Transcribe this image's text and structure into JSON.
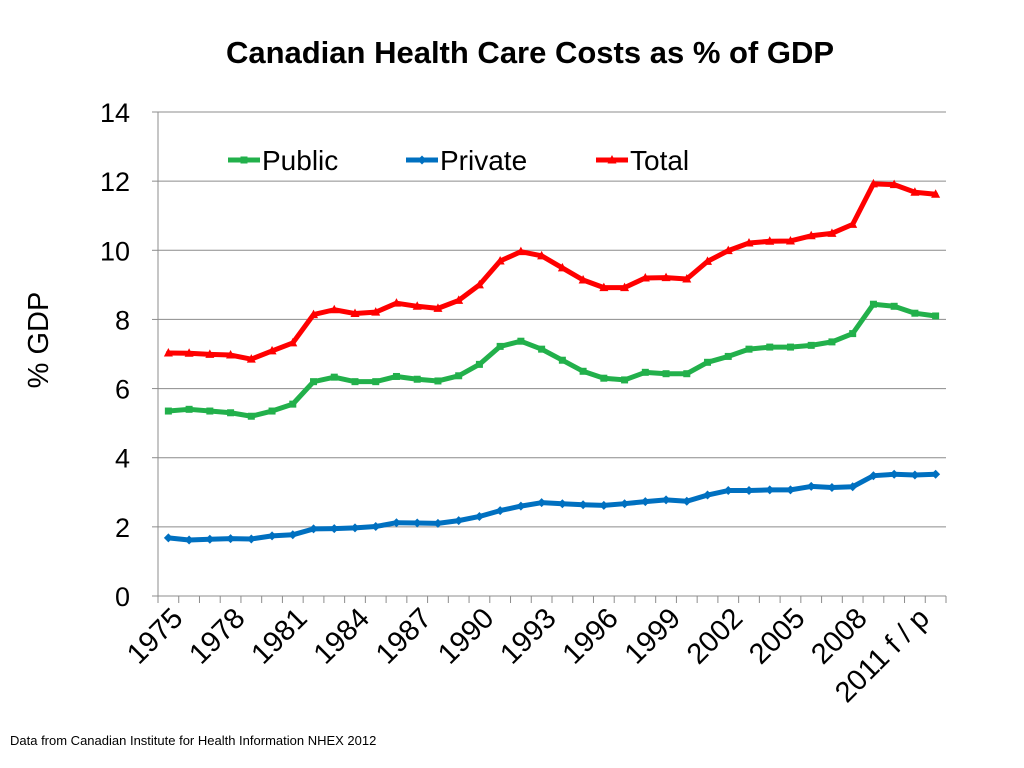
{
  "chart_data": {
    "type": "line",
    "title": "Canadian Health Care Costs as % of GDP",
    "xlabel": "",
    "ylabel": "% GDP",
    "ylim": [
      0,
      14
    ],
    "yticks": [
      0,
      2,
      4,
      6,
      8,
      10,
      12,
      14
    ],
    "grid": true,
    "legend_position": "top",
    "x": [
      "1975",
      "1976",
      "1977",
      "1978",
      "1979",
      "1980",
      "1981",
      "1982",
      "1983",
      "1984",
      "1985",
      "1986",
      "1987",
      "1988",
      "1989",
      "1990",
      "1991",
      "1992",
      "1993",
      "1994",
      "1995",
      "1996",
      "1997",
      "1998",
      "1999",
      "2000",
      "2001",
      "2002",
      "2003",
      "2004",
      "2005",
      "2006",
      "2007",
      "2008",
      "2009",
      "2010",
      "2011 f / p",
      "2012"
    ],
    "xtick_labels": [
      "1975",
      "1978",
      "1981",
      "1984",
      "1987",
      "1990",
      "1993",
      "1996",
      "1999",
      "2002",
      "2005",
      "2008",
      "2011 f / p"
    ],
    "series": [
      {
        "name": "Public",
        "color": "#22b04b",
        "marker": "square",
        "values": [
          5.35,
          5.4,
          5.35,
          5.3,
          5.2,
          5.35,
          5.55,
          6.2,
          6.33,
          6.2,
          6.2,
          6.35,
          6.27,
          6.22,
          6.37,
          6.7,
          7.22,
          7.37,
          7.14,
          6.82,
          6.5,
          6.3,
          6.25,
          6.47,
          6.43,
          6.43,
          6.76,
          6.93,
          7.14,
          7.2,
          7.2,
          7.25,
          7.35,
          7.59,
          8.44,
          8.38,
          8.18,
          8.1
        ]
      },
      {
        "name": "Private",
        "color": "#0070c0",
        "marker": "diamond",
        "values": [
          1.68,
          1.62,
          1.64,
          1.66,
          1.65,
          1.74,
          1.77,
          1.94,
          1.95,
          1.97,
          2.01,
          2.12,
          2.11,
          2.1,
          2.18,
          2.3,
          2.47,
          2.6,
          2.7,
          2.67,
          2.64,
          2.62,
          2.67,
          2.73,
          2.78,
          2.74,
          2.92,
          3.05,
          3.05,
          3.07,
          3.07,
          3.17,
          3.14,
          3.16,
          3.48,
          3.52,
          3.5,
          3.52
        ]
      },
      {
        "name": "Total",
        "color": "#ff0000",
        "marker": "triangle",
        "values": [
          7.03,
          7.02,
          6.99,
          6.97,
          6.85,
          7.09,
          7.32,
          8.14,
          8.28,
          8.17,
          8.21,
          8.47,
          8.38,
          8.32,
          8.55,
          9.0,
          9.69,
          9.96,
          9.84,
          9.49,
          9.14,
          8.92,
          8.92,
          9.2,
          9.21,
          9.17,
          9.68,
          9.99,
          10.21,
          10.26,
          10.27,
          10.42,
          10.49,
          10.75,
          11.92,
          11.9,
          11.68,
          11.62
        ]
      }
    ]
  },
  "source_note": "Data from Canadian Institute for Health Information NHEX 2012"
}
